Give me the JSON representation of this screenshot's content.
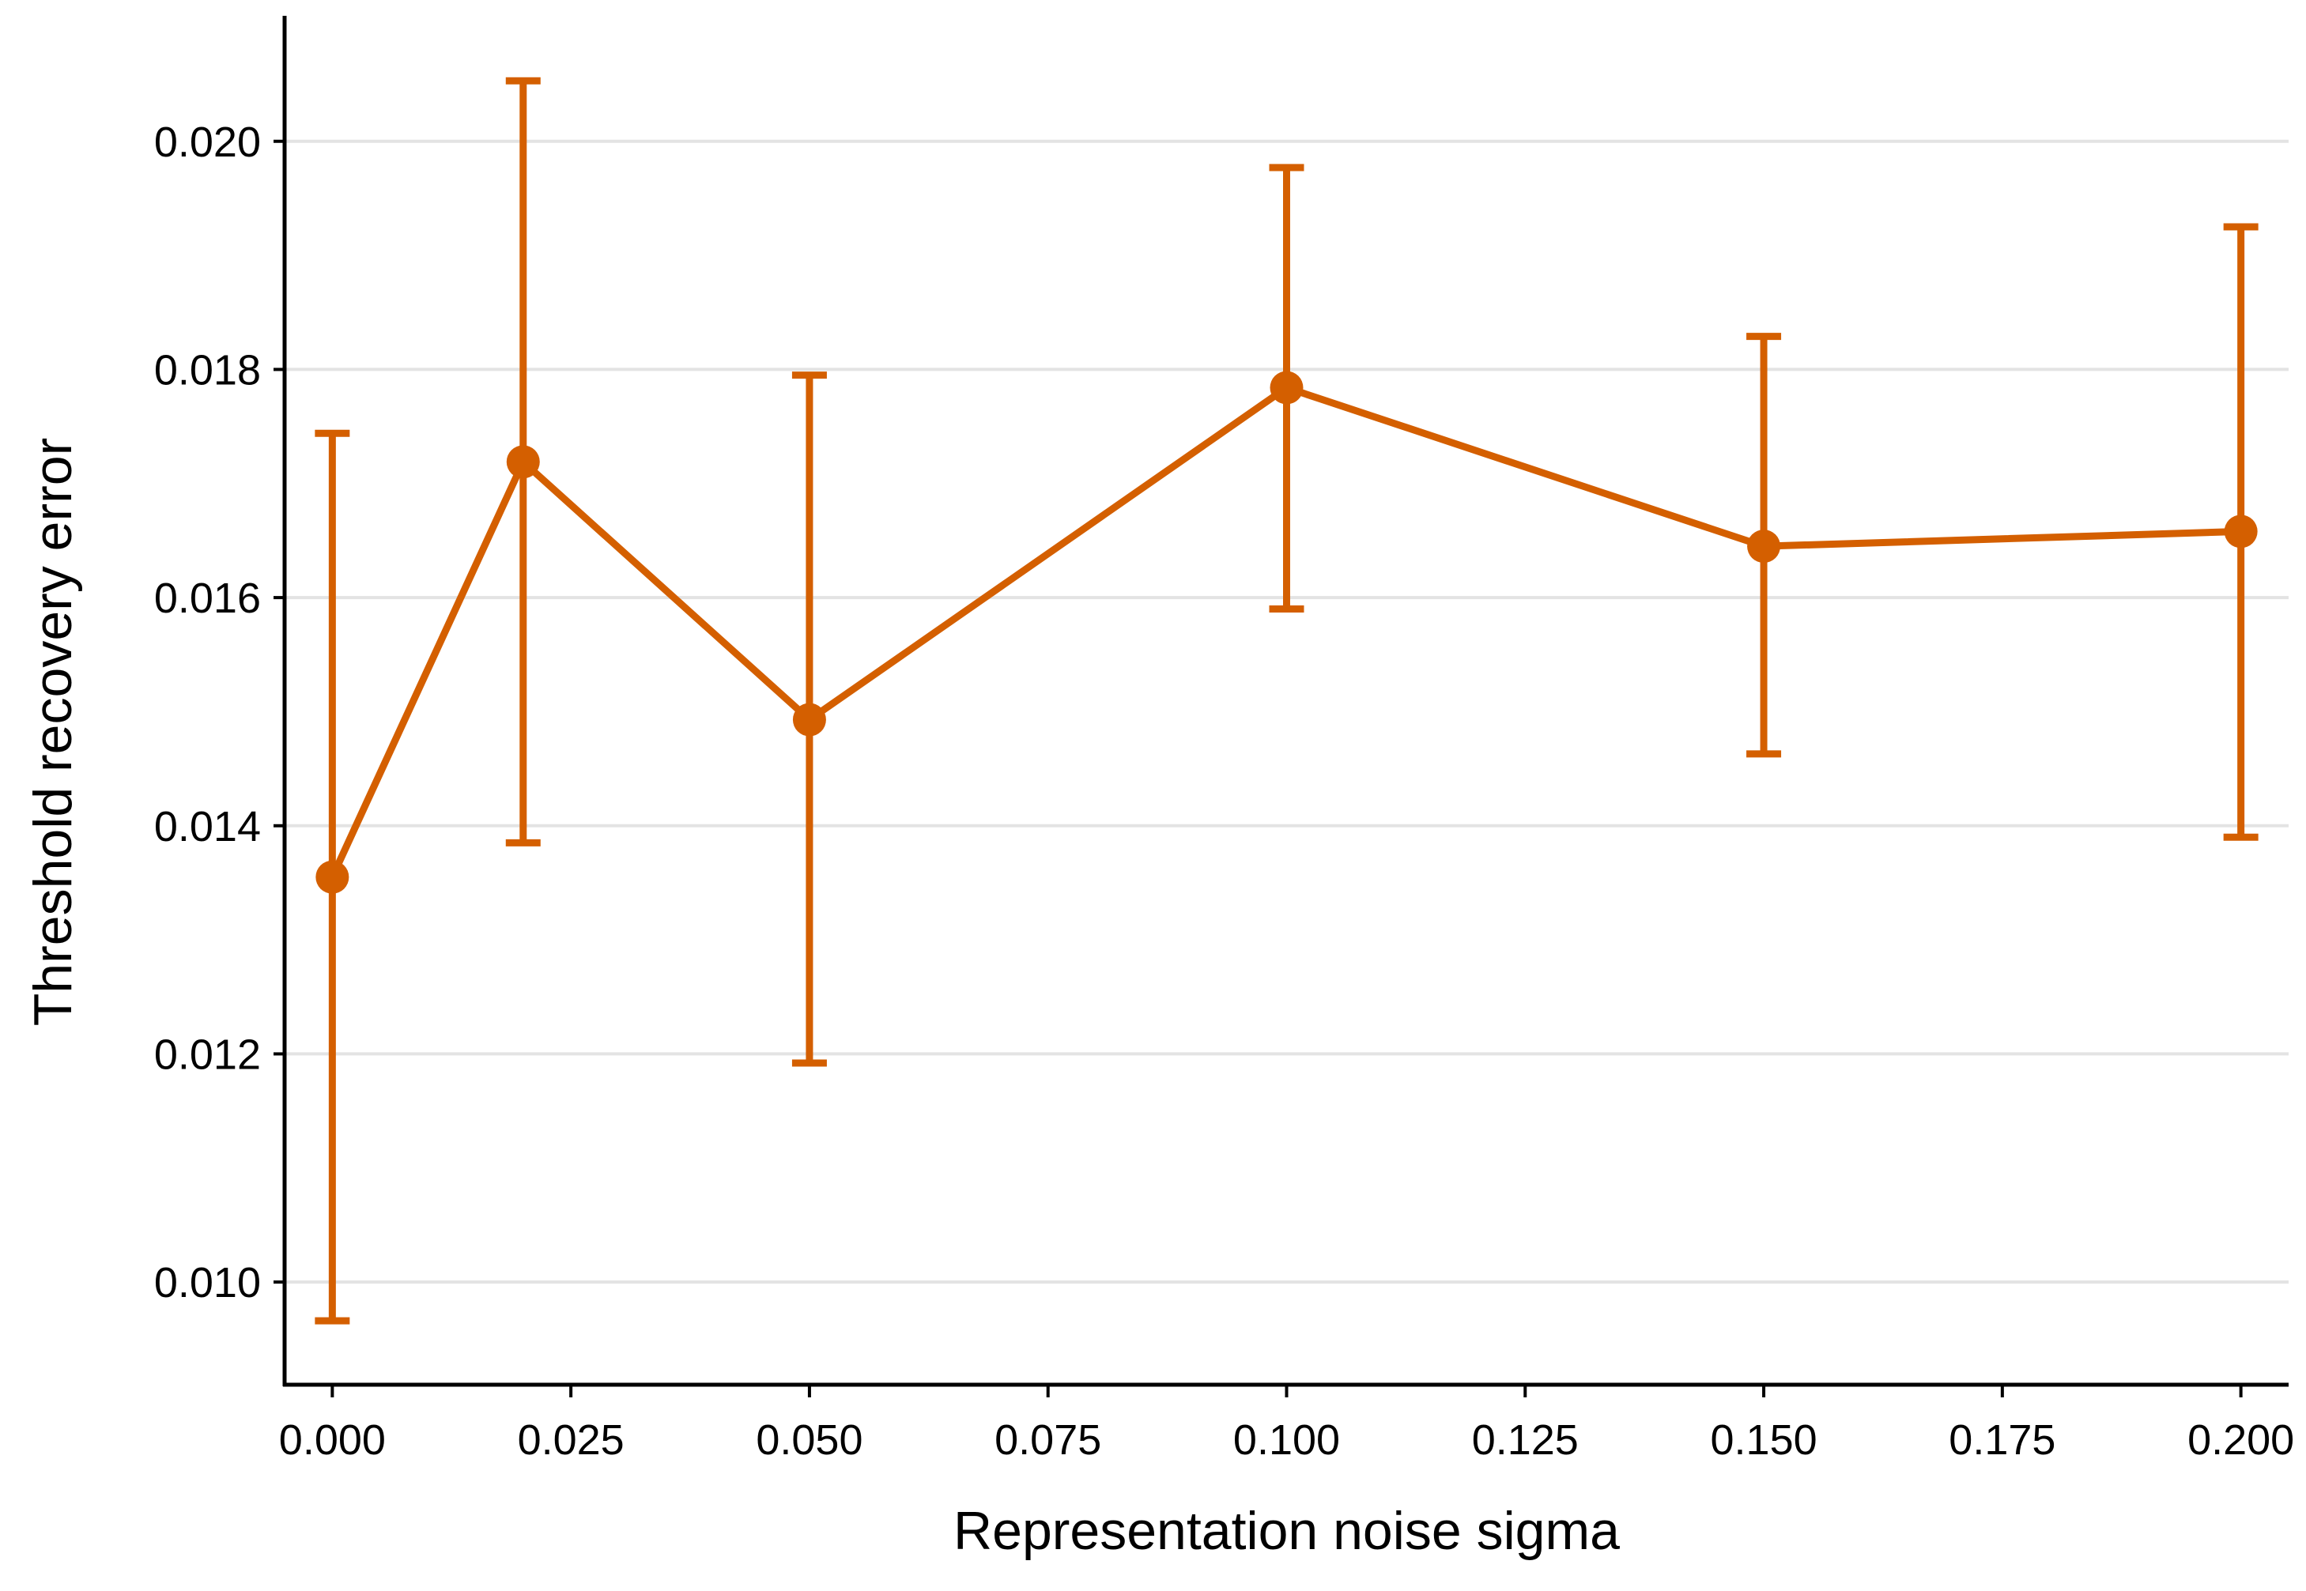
{
  "chart_data": {
    "type": "line",
    "title": "",
    "xlabel": "Representation noise sigma",
    "ylabel": "Threshold recovery error",
    "x_ticks": [
      "0.000",
      "0.025",
      "0.050",
      "0.075",
      "0.100",
      "0.125",
      "0.150",
      "0.175",
      "0.200"
    ],
    "y_ticks": [
      "0.010",
      "0.012",
      "0.014",
      "0.016",
      "0.018",
      "0.020"
    ],
    "xlim": [
      -0.005,
      0.205
    ],
    "ylim": [
      0.0091,
      0.0211
    ],
    "grid": "horizontal",
    "legend": "none",
    "color": "#d45f00",
    "series": [
      {
        "x": [
          0.0,
          0.02,
          0.05,
          0.1,
          0.15,
          0.2
        ],
        "y": [
          0.01355,
          0.01719,
          0.01493,
          0.01784,
          0.01645,
          0.01658
        ],
        "error_low": [
          0.00966,
          0.01385,
          0.01192,
          0.0159,
          0.01463,
          0.0139
        ],
        "error_high": [
          0.01744,
          0.02053,
          0.01795,
          0.01977,
          0.01829,
          0.01925
        ]
      }
    ]
  }
}
